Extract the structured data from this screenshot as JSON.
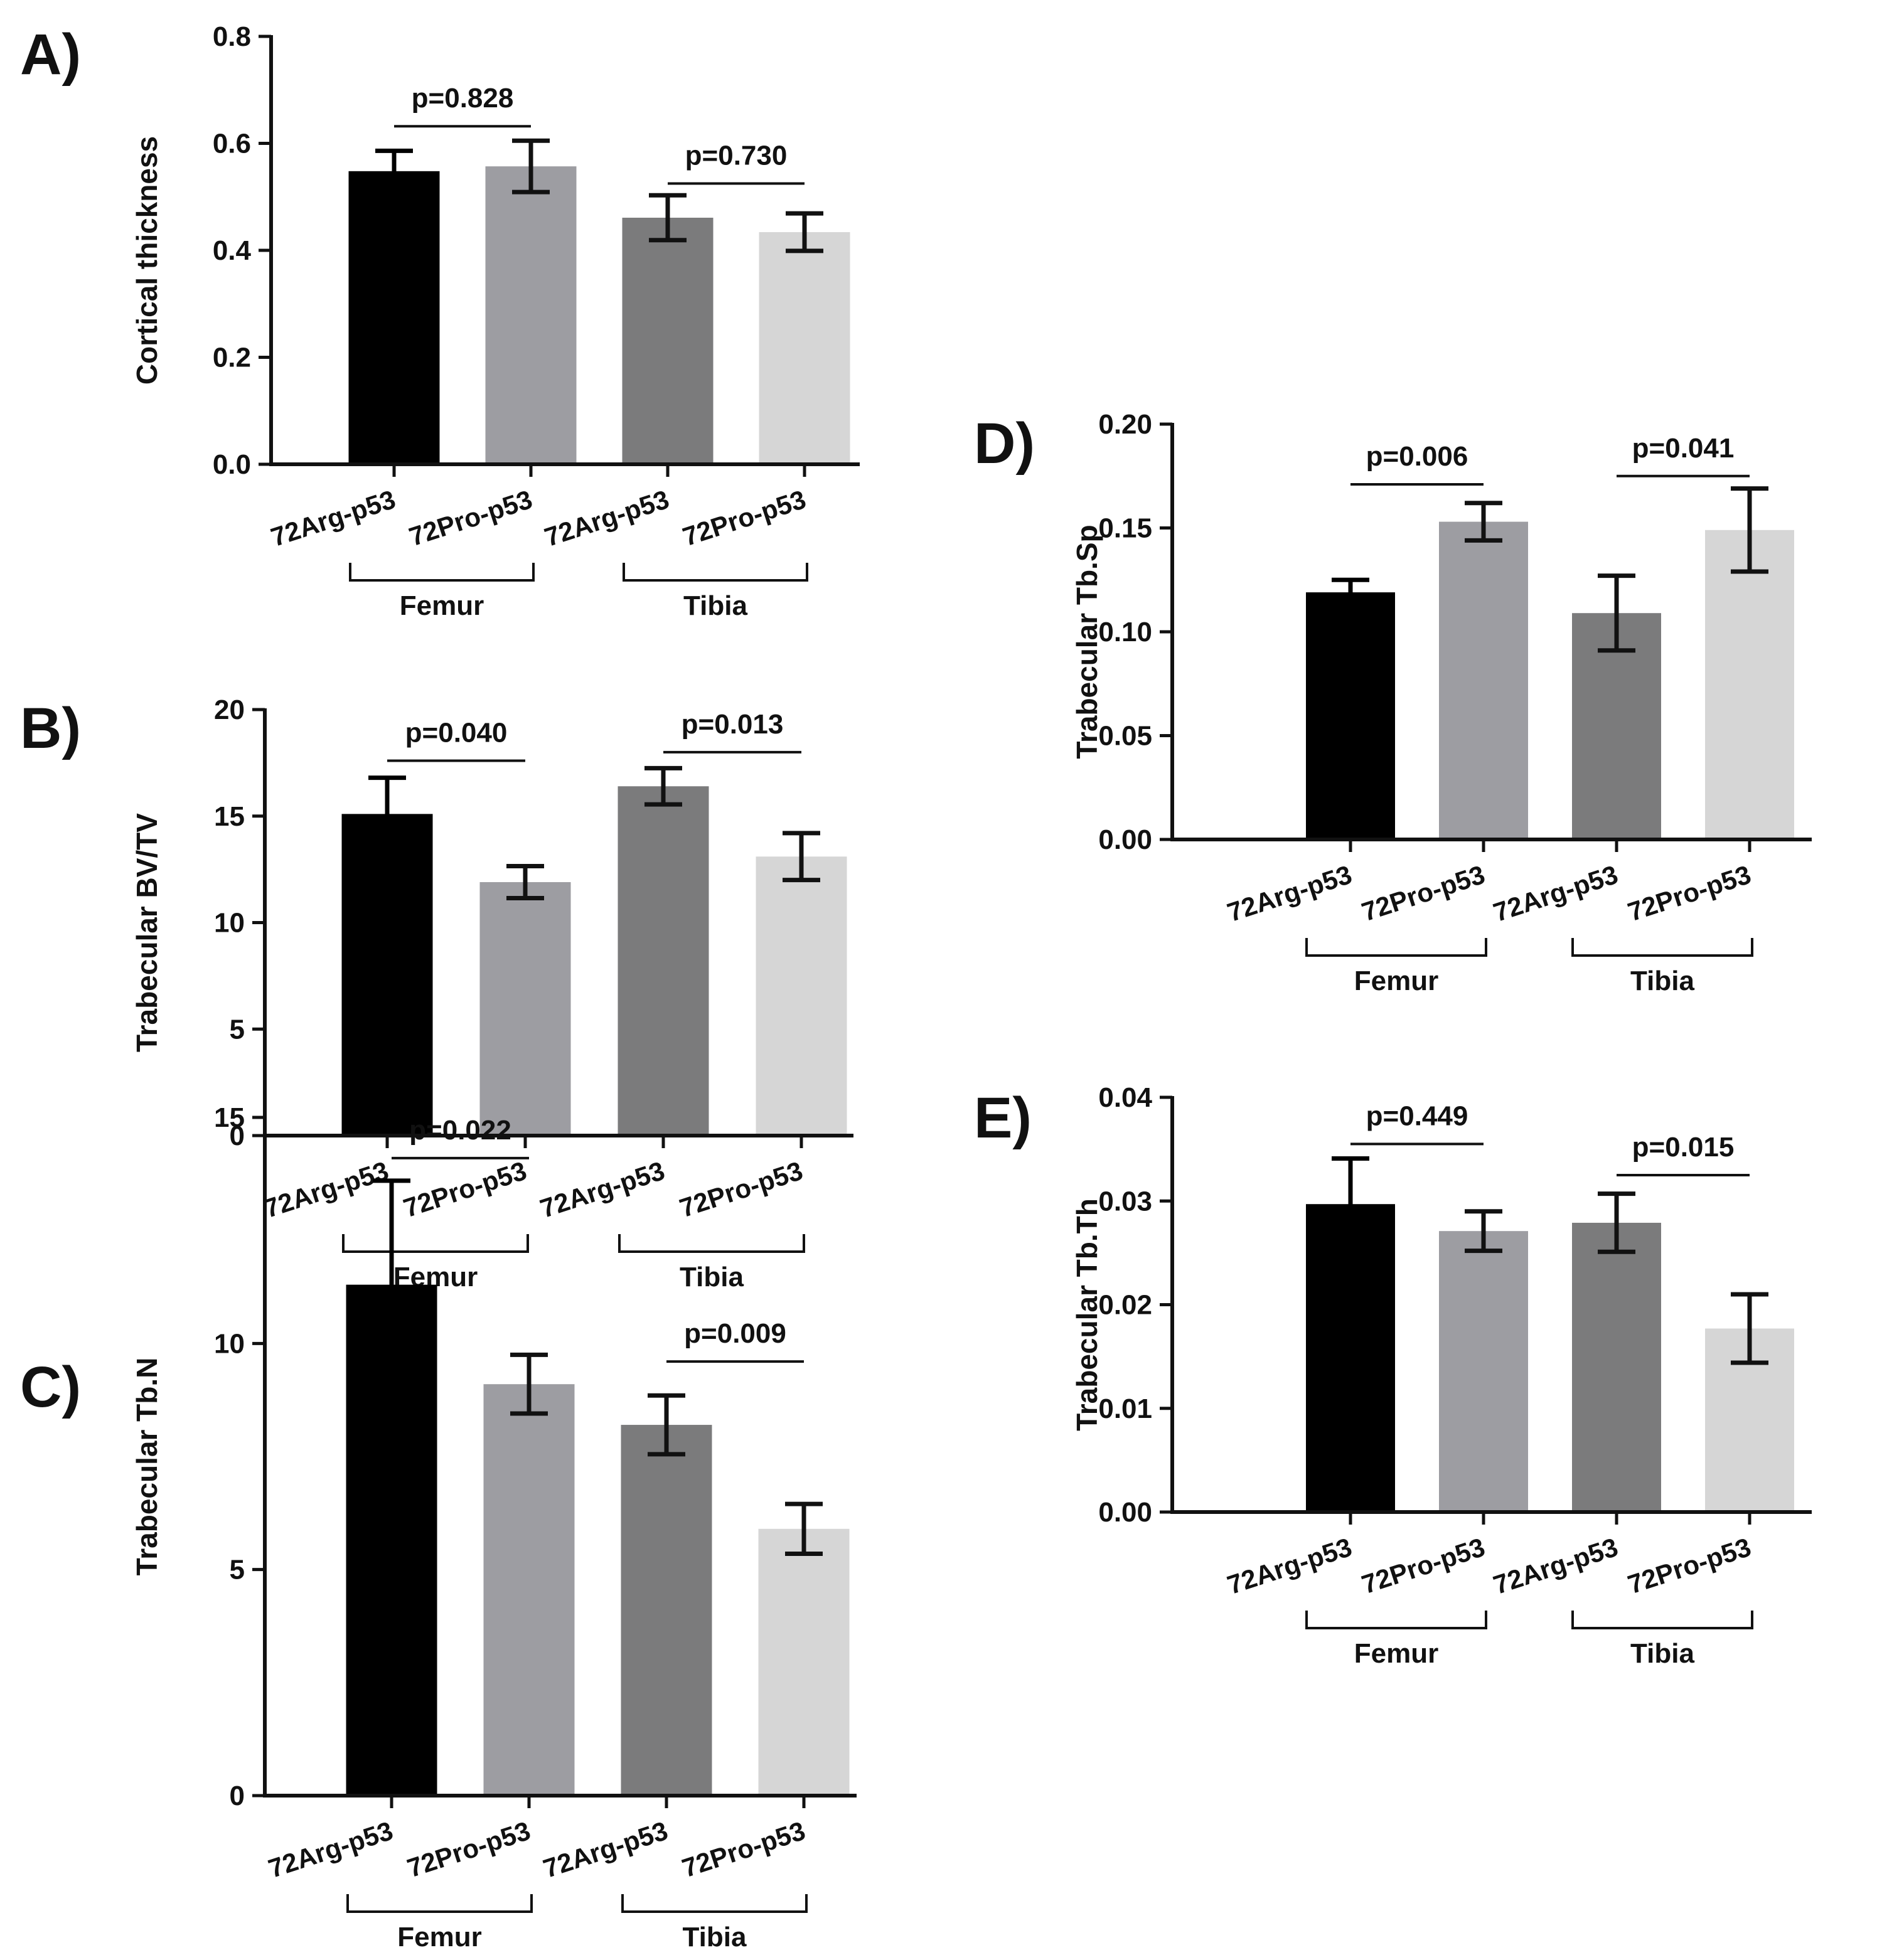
{
  "figure": {
    "panels": [
      "A",
      "B",
      "C",
      "D",
      "E"
    ]
  },
  "chart_data": [
    {
      "id": "A",
      "panel_label": "A)",
      "type": "bar",
      "ylabel": "Cortical thickness",
      "ylim": [
        0,
        0.8
      ],
      "yticks": [
        0,
        0.2,
        0.4,
        0.6,
        0.8
      ],
      "ytick_labels": [
        "0.0",
        "0.2",
        "0.4",
        "0.6",
        "0.8"
      ],
      "categories": [
        "72Arg-p53",
        "72Pro-p53",
        "72Arg-p53",
        "72Pro-p53"
      ],
      "values": [
        0.548,
        0.557,
        0.461,
        0.434
      ],
      "errors": [
        0.038,
        0.048,
        0.042,
        0.035
      ],
      "colors": [
        "#000000",
        "#9d9da2",
        "#7b7b7c",
        "#d6d6d6"
      ],
      "groups": [
        {
          "label": "Femur",
          "from": 0,
          "to": 1
        },
        {
          "label": "Tibia",
          "from": 2,
          "to": 3
        }
      ],
      "comparisons": [
        {
          "label": "p=0.828",
          "from": 0,
          "to": 1,
          "y": 0.632
        },
        {
          "label": "p=0.730",
          "from": 2,
          "to": 3,
          "y": 0.525
        }
      ]
    },
    {
      "id": "B",
      "panel_label": "B)",
      "type": "bar",
      "ylabel": "Trabecular BV/TV",
      "ylim": [
        0,
        20
      ],
      "yticks": [
        0,
        5,
        10,
        15,
        20
      ],
      "ytick_labels": [
        "0",
        "5",
        "10",
        "15",
        "20"
      ],
      "categories": [
        "72Arg-p53",
        "72Pro-p53",
        "72Arg-p53",
        "72Pro-p53"
      ],
      "values": [
        15.1,
        11.9,
        16.4,
        13.1
      ],
      "errors": [
        1.7,
        0.75,
        0.85,
        1.1
      ],
      "colors": [
        "#000000",
        "#9d9da2",
        "#7b7b7c",
        "#d6d6d6"
      ],
      "groups": [
        {
          "label": "Femur",
          "from": 0,
          "to": 1
        },
        {
          "label": "Tibia",
          "from": 2,
          "to": 3
        }
      ],
      "comparisons": [
        {
          "label": "p=0.040",
          "from": 0,
          "to": 1,
          "y": 17.6
        },
        {
          "label": "p=0.013",
          "from": 2,
          "to": 3,
          "y": 18.0
        }
      ]
    },
    {
      "id": "C",
      "panel_label": "C)",
      "type": "bar",
      "ylabel": "Trabecular Tb.N",
      "ylim": [
        0,
        15
      ],
      "yticks": [
        0,
        5,
        10,
        15
      ],
      "ytick_labels": [
        "0",
        "5",
        "10",
        "15"
      ],
      "categories": [
        "72Arg-p53",
        "72Pro-p53",
        "72Arg-p53",
        "72Pro-p53"
      ],
      "values": [
        11.3,
        9.1,
        8.2,
        5.9
      ],
      "errors": [
        2.3,
        0.65,
        0.65,
        0.55
      ],
      "colors": [
        "#000000",
        "#9d9da2",
        "#7b7b7c",
        "#d6d6d6"
      ],
      "groups": [
        {
          "label": "Femur",
          "from": 0,
          "to": 1
        },
        {
          "label": "Tibia",
          "from": 2,
          "to": 3
        }
      ],
      "comparisons": [
        {
          "label": "p=0.022",
          "from": 0,
          "to": 1,
          "y": 14.1
        },
        {
          "label": "p=0.009",
          "from": 2,
          "to": 3,
          "y": 9.6
        }
      ]
    },
    {
      "id": "D",
      "panel_label": "D)",
      "type": "bar",
      "ylabel": "Trabecular Tb.Sp",
      "ylim": [
        0,
        0.2
      ],
      "yticks": [
        0,
        0.05,
        0.1,
        0.15,
        0.2
      ],
      "ytick_labels": [
        "0.00",
        "0.05",
        "0.10",
        "0.15",
        "0.20"
      ],
      "categories": [
        "72Arg-p53",
        "72Pro-p53",
        "72Arg-p53",
        "72Pro-p53"
      ],
      "values": [
        0.119,
        0.153,
        0.109,
        0.149
      ],
      "errors": [
        0.006,
        0.009,
        0.018,
        0.02
      ],
      "colors": [
        "#000000",
        "#9d9da2",
        "#7b7b7c",
        "#d6d6d6"
      ],
      "groups": [
        {
          "label": "Femur",
          "from": 0,
          "to": 1
        },
        {
          "label": "Tibia",
          "from": 2,
          "to": 3
        }
      ],
      "comparisons": [
        {
          "label": "p=0.006",
          "from": 0,
          "to": 1,
          "y": 0.171
        },
        {
          "label": "p=0.041",
          "from": 2,
          "to": 3,
          "y": 0.175
        }
      ]
    },
    {
      "id": "E",
      "panel_label": "E)",
      "type": "bar",
      "ylabel": "Trabecular Tb.Th",
      "ylim": [
        0,
        0.04
      ],
      "yticks": [
        0,
        0.01,
        0.02,
        0.03,
        0.04
      ],
      "ytick_labels": [
        "0.00",
        "0.01",
        "0.02",
        "0.03",
        "0.04"
      ],
      "categories": [
        "72Arg-p53",
        "72Pro-p53",
        "72Arg-p53",
        "72Pro-p53"
      ],
      "values": [
        0.0297,
        0.0271,
        0.0279,
        0.0177
      ],
      "errors": [
        0.0044,
        0.0019,
        0.0028,
        0.0033
      ],
      "colors": [
        "#000000",
        "#9d9da2",
        "#7b7b7c",
        "#d6d6d6"
      ],
      "groups": [
        {
          "label": "Femur",
          "from": 0,
          "to": 1
        },
        {
          "label": "Tibia",
          "from": 2,
          "to": 3
        }
      ],
      "comparisons": [
        {
          "label": "p=0.449",
          "from": 0,
          "to": 1,
          "y": 0.0355
        },
        {
          "label": "p=0.015",
          "from": 2,
          "to": 3,
          "y": 0.0325
        }
      ]
    }
  ]
}
